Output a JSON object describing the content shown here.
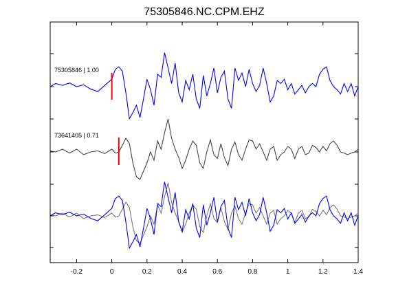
{
  "chart_data": {
    "type": "line",
    "title": "75305846.NC.CPM.EHZ",
    "xlabel": "",
    "ylabel": "",
    "xlim": [
      -0.35,
      1.4
    ],
    "x_ticks": [
      -0.2,
      0,
      0.2,
      0.4,
      0.6,
      0.8,
      1,
      1.2,
      1.4
    ],
    "x_tick_labels": [
      "-0.2",
      "0",
      "0.2",
      "0.4",
      "0.6",
      "0.8",
      "1",
      "1.2",
      "1.4"
    ],
    "grid": false,
    "colors": {
      "blue": "#0000ff",
      "gray": "#444444",
      "gray_light": "#777777",
      "pick": "#ff0000"
    },
    "traces": [
      {
        "label": "75305846 | 1.00",
        "color": "blue",
        "pick_time": 0.0,
        "x": [
          -0.35,
          -0.32,
          -0.28,
          -0.24,
          -0.2,
          -0.16,
          -0.12,
          -0.08,
          -0.04,
          0.0,
          0.02,
          0.04,
          0.06,
          0.08,
          0.1,
          0.12,
          0.14,
          0.16,
          0.18,
          0.2,
          0.22,
          0.24,
          0.26,
          0.28,
          0.3,
          0.32,
          0.34,
          0.36,
          0.38,
          0.4,
          0.42,
          0.44,
          0.46,
          0.48,
          0.5,
          0.52,
          0.54,
          0.56,
          0.58,
          0.6,
          0.62,
          0.64,
          0.66,
          0.68,
          0.7,
          0.72,
          0.74,
          0.76,
          0.78,
          0.8,
          0.82,
          0.84,
          0.86,
          0.88,
          0.9,
          0.92,
          0.94,
          0.96,
          0.98,
          1.0,
          1.02,
          1.04,
          1.06,
          1.08,
          1.1,
          1.12,
          1.14,
          1.16,
          1.18,
          1.2,
          1.22,
          1.24,
          1.26,
          1.28,
          1.3,
          1.32,
          1.34,
          1.36,
          1.38,
          1.4
        ],
        "y": [
          0.0,
          0.05,
          0.02,
          0.06,
          0.0,
          0.03,
          -0.04,
          -0.08,
          0.02,
          0.12,
          0.28,
          0.32,
          0.25,
          -0.1,
          -0.52,
          -0.42,
          -0.3,
          -0.5,
          -0.2,
          0.12,
          -0.05,
          -0.3,
          0.2,
          0.15,
          0.55,
          0.3,
          0.05,
          0.38,
          -0.1,
          -0.25,
          0.1,
          -0.05,
          0.2,
          -0.2,
          -0.35,
          0.18,
          -0.15,
          0.05,
          0.3,
          -0.1,
          0.15,
          0.25,
          -0.2,
          -0.35,
          0.3,
          0.1,
          0.22,
          0.0,
          0.28,
          0.05,
          -0.08,
          0.02,
          0.3,
          0.05,
          -0.25,
          -0.15,
          0.1,
          0.05,
          0.12,
          -0.05,
          0.05,
          -0.12,
          -0.05,
          0.02,
          -0.1,
          0.0,
          0.05,
          0.0,
          0.2,
          0.28,
          0.32,
          0.1,
          0.0,
          -0.05,
          -0.12,
          0.05,
          -0.08,
          0.05,
          -0.15,
          0.0
        ]
      },
      {
        "label": "73641405 | 0.71",
        "color": "gray",
        "pick_time": 0.04,
        "x": [
          -0.35,
          -0.32,
          -0.28,
          -0.24,
          -0.2,
          -0.16,
          -0.12,
          -0.08,
          -0.04,
          0.0,
          0.02,
          0.04,
          0.06,
          0.08,
          0.1,
          0.12,
          0.14,
          0.16,
          0.18,
          0.2,
          0.22,
          0.24,
          0.26,
          0.28,
          0.3,
          0.32,
          0.34,
          0.36,
          0.38,
          0.4,
          0.42,
          0.44,
          0.46,
          0.48,
          0.5,
          0.52,
          0.54,
          0.56,
          0.58,
          0.6,
          0.62,
          0.64,
          0.66,
          0.68,
          0.7,
          0.72,
          0.74,
          0.76,
          0.78,
          0.8,
          0.82,
          0.84,
          0.86,
          0.88,
          0.9,
          0.92,
          0.94,
          0.96,
          0.98,
          1.0,
          1.02,
          1.04,
          1.06,
          1.08,
          1.1,
          1.12,
          1.14,
          1.16,
          1.18,
          1.2,
          1.22,
          1.24,
          1.26,
          1.28,
          1.3,
          1.32,
          1.34,
          1.36,
          1.38,
          1.4
        ],
        "y": [
          0.02,
          0.0,
          0.05,
          -0.02,
          0.05,
          -0.05,
          0.0,
          0.02,
          -0.03,
          0.05,
          -0.02,
          0.0,
          0.12,
          0.25,
          0.15,
          -0.2,
          -0.45,
          -0.5,
          -0.35,
          -0.2,
          0.0,
          -0.15,
          0.2,
          0.05,
          0.35,
          0.6,
          0.25,
          0.05,
          -0.1,
          -0.3,
          -0.15,
          0.05,
          0.2,
          0.12,
          -0.2,
          -0.3,
          0.0,
          0.22,
          -0.05,
          -0.12,
          0.15,
          -0.1,
          -0.25,
          0.05,
          0.18,
          -0.05,
          -0.15,
          0.05,
          0.22,
          0.2,
          0.05,
          0.15,
          0.0,
          -0.15,
          0.05,
          0.1,
          -0.15,
          -0.05,
          0.0,
          0.1,
          0.05,
          -0.12,
          0.05,
          0.1,
          -0.05,
          -0.02,
          0.12,
          0.08,
          0.0,
          0.1,
          0.02,
          0.15,
          0.2,
          0.12,
          0.0,
          -0.02,
          -0.05,
          -0.02,
          0.0,
          0.05
        ]
      }
    ]
  }
}
